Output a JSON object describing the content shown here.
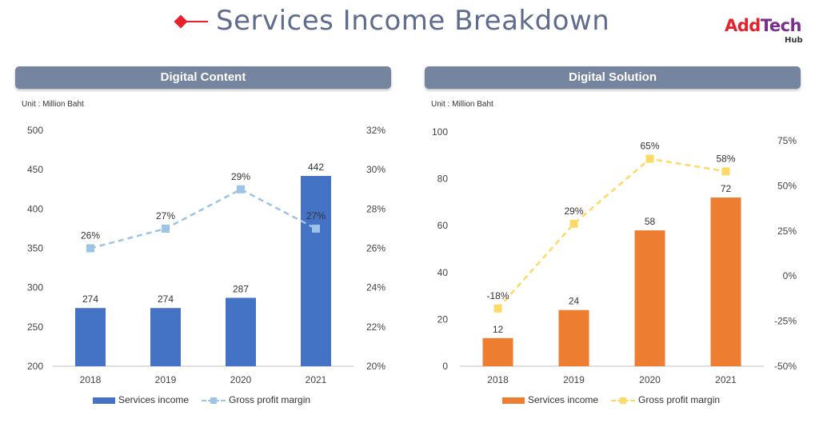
{
  "page": {
    "title": "Services Income Breakdown",
    "logo_main_1": "Add",
    "logo_main_2": "Tech",
    "logo_sub": "Hub",
    "accent": "#e8202a"
  },
  "chart_data": [
    {
      "type": "bar",
      "title": "Digital Content",
      "unit": "Unit : Million Baht",
      "categories": [
        "2018",
        "2019",
        "2020",
        "2021"
      ],
      "series": [
        {
          "name": "Services income",
          "kind": "bar",
          "axis": "left",
          "color": "#4472c4",
          "values": [
            274,
            274,
            287,
            442
          ],
          "labels": [
            "274",
            "274",
            "287",
            "442"
          ]
        },
        {
          "name": "Gross profit margin",
          "kind": "line",
          "axis": "right",
          "color": "#9dc3e6",
          "dashed": true,
          "values": [
            26,
            27,
            29,
            27
          ],
          "labels": [
            "26%",
            "27%",
            "29%",
            "27%"
          ]
        }
      ],
      "ylim": [
        200,
        500
      ],
      "yticks": [
        "500",
        "450",
        "400",
        "350",
        "300",
        "250",
        "200"
      ],
      "y2lim": [
        20,
        32
      ],
      "y2ticks": [
        "32%",
        "30%",
        "28%",
        "26%",
        "24%",
        "22%",
        "20%"
      ]
    },
    {
      "type": "bar",
      "title": "Digital Solution",
      "unit": "Unit : Million Baht",
      "categories": [
        "2018",
        "2019",
        "2020",
        "2021"
      ],
      "series": [
        {
          "name": "Services income",
          "kind": "bar",
          "axis": "left",
          "color": "#ed7d31",
          "values": [
            12,
            24,
            58,
            72
          ],
          "labels": [
            "12",
            "24",
            "58",
            "72"
          ]
        },
        {
          "name": "Gross profit margin",
          "kind": "line",
          "axis": "right",
          "color": "#ffd966",
          "dashed": true,
          "values": [
            -18,
            29,
            65,
            58
          ],
          "labels": [
            "-18%",
            "29%",
            "65%",
            "58%"
          ]
        }
      ],
      "ylim": [
        0,
        100
      ],
      "yticks": [
        "100",
        "80",
        "60",
        "40",
        "20",
        "0"
      ],
      "y2lim": [
        -50,
        75
      ],
      "y2ticks": [
        "75%",
        "50%",
        "25%",
        "0%",
        "-25%",
        "-50%"
      ]
    }
  ]
}
